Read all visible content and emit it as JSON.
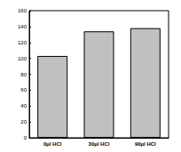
{
  "chart_data": {
    "type": "bar",
    "categories": [
      "0µl HCl",
      "30µl HCl",
      "90µl HCl"
    ],
    "values": [
      103,
      134,
      138
    ],
    "color": "#c0c0c0",
    "ylim": [
      0,
      160
    ],
    "yticks": [
      0,
      20,
      40,
      60,
      80,
      100,
      120,
      140,
      160
    ],
    "grid": false
  }
}
